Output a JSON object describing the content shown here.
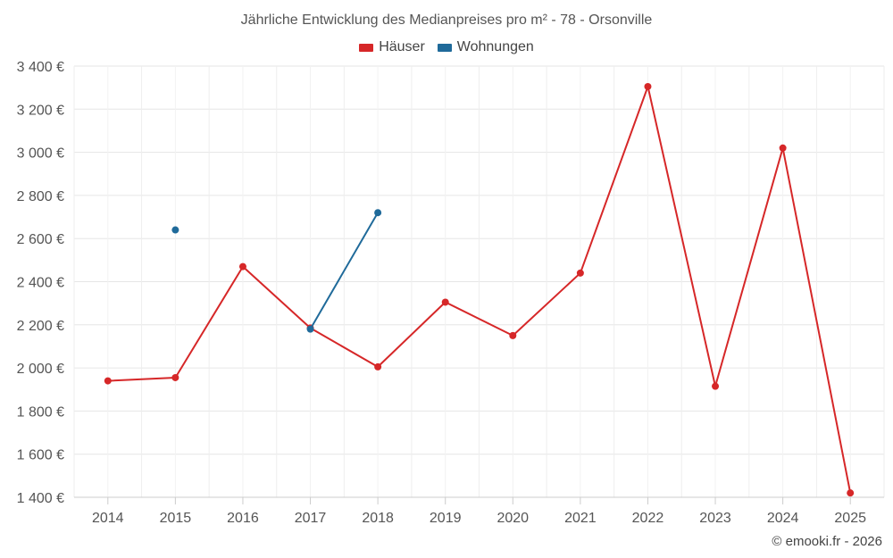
{
  "chart_data": {
    "type": "line",
    "title": "Jährliche Entwicklung des Medianpreises pro m² - 78 - Orsonville",
    "categories": [
      "2014",
      "2015",
      "2016",
      "2017",
      "2018",
      "2019",
      "2020",
      "2021",
      "2022",
      "2023",
      "2024",
      "2025"
    ],
    "series": [
      {
        "name": "Häuser",
        "color": "#d62728",
        "values": [
          1940,
          1955,
          2470,
          2185,
          2005,
          2305,
          2150,
          2440,
          3305,
          1915,
          3020,
          1420
        ]
      },
      {
        "name": "Wohnungen",
        "color": "#1f6a9a",
        "values": [
          null,
          2640,
          null,
          2180,
          2720,
          null,
          null,
          null,
          null,
          null,
          null,
          null
        ]
      }
    ],
    "ylim": [
      1400,
      3400
    ],
    "yticks": [
      1400,
      1600,
      1800,
      2000,
      2200,
      2400,
      2600,
      2800,
      3000,
      3200,
      3400
    ],
    "ytick_labels": [
      "1 400 €",
      "1 600 €",
      "1 800 €",
      "2 000 €",
      "2 200 €",
      "2 400 €",
      "2 600 €",
      "2 800 €",
      "3 000 €",
      "3 200 €",
      "3 400 €"
    ],
    "xlabel": "",
    "ylabel": "",
    "grid": true,
    "legend_position": "top-center"
  },
  "credit": "© emooki.fr - 2026"
}
